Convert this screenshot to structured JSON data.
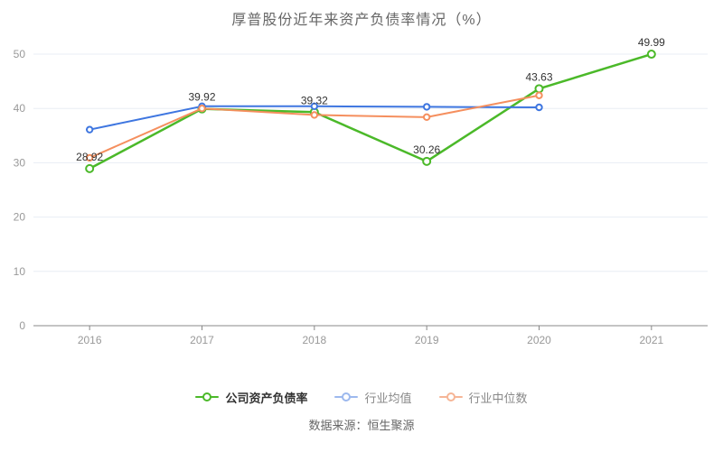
{
  "chart_data": {
    "type": "line",
    "title": "厚普股份近年来资产负债率情况（%）",
    "categories": [
      "2016",
      "2017",
      "2018",
      "2019",
      "2020",
      "2021"
    ],
    "series": [
      {
        "name": "公司资产负债率",
        "color": "#4bb929",
        "legend_color": "#4bb929",
        "values": [
          28.92,
          39.92,
          39.32,
          30.26,
          43.63,
          49.99
        ],
        "show_labels": true,
        "emphasized": true
      },
      {
        "name": "行业均值",
        "color": "#3e76e0",
        "legend_color": "#9db9ee",
        "values": [
          36.1,
          40.4,
          40.4,
          40.3,
          40.2,
          null
        ],
        "show_labels": false,
        "emphasized": false
      },
      {
        "name": "行业中位数",
        "color": "#f58f5e",
        "legend_color": "#f6b596",
        "values": [
          30.9,
          40.0,
          38.8,
          38.4,
          42.4,
          null
        ],
        "show_labels": false,
        "emphasized": false
      }
    ],
    "ylim": [
      0,
      50
    ],
    "yticks": [
      0,
      10,
      20,
      30,
      40,
      50
    ],
    "grid": true,
    "legend_position": "bottom",
    "label_color": "#333333",
    "axis_color": "#888888",
    "tick_label_color": "#999999",
    "grid_color": "#e8edf4"
  },
  "footer": {
    "source": "数据来源：恒生聚源"
  }
}
